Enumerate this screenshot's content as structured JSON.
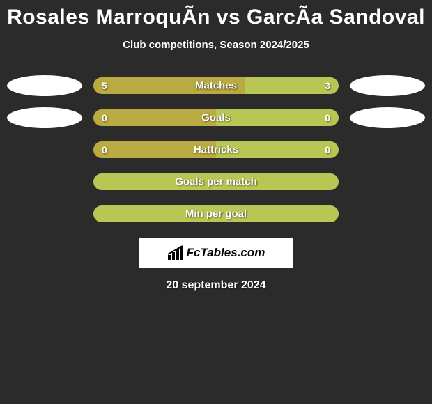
{
  "title": "Rosales MarroquÃ­n vs GarcÃ­a Sandoval",
  "subtitle": "Club competitions, Season 2024/2025",
  "colors": {
    "background": "#2b2b2b",
    "badge": "#ffffff",
    "text": "#ffffff",
    "row_left_a": "#b9aa42",
    "row_right_a": "#bac654",
    "row_full": "#bac654",
    "logo_bg": "#ffffff"
  },
  "rows": [
    {
      "name": "Matches",
      "left_value": "5",
      "right_value": "3",
      "left_pct": 62,
      "right_pct": 38,
      "left_color": "#b9aa42",
      "right_color": "#bac654",
      "show_values": true,
      "show_badges": true
    },
    {
      "name": "Goals",
      "left_value": "0",
      "right_value": "0",
      "left_pct": 50,
      "right_pct": 50,
      "left_color": "#b9aa42",
      "right_color": "#bac654",
      "show_values": true,
      "show_badges": true
    },
    {
      "name": "Hattricks",
      "left_value": "0",
      "right_value": "0",
      "left_pct": 50,
      "right_pct": 50,
      "left_color": "#b9aa42",
      "right_color": "#bac654",
      "show_values": true,
      "show_badges": false
    },
    {
      "name": "Goals per match",
      "left_value": "",
      "right_value": "",
      "left_pct": 100,
      "right_pct": 0,
      "left_color": "#bac654",
      "right_color": "#bac654",
      "show_values": false,
      "show_badges": false
    },
    {
      "name": "Min per goal",
      "left_value": "",
      "right_value": "",
      "left_pct": 100,
      "right_pct": 0,
      "left_color": "#bac654",
      "right_color": "#bac654",
      "show_values": false,
      "show_badges": false
    }
  ],
  "logo": {
    "text": "FcTables.com"
  },
  "date": "20 september 2024"
}
